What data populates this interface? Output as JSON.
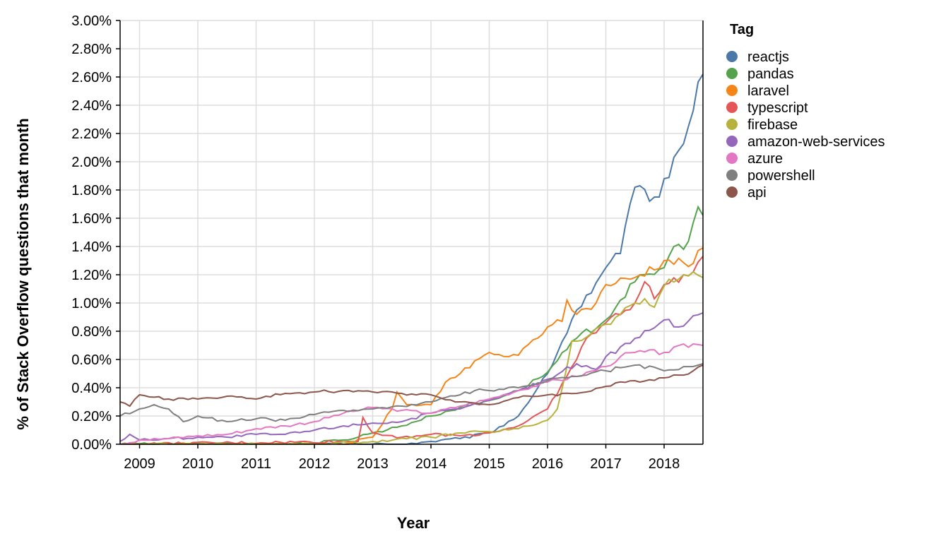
{
  "chart_data": {
    "type": "line",
    "xlabel": "Year",
    "ylabel": "% of Stack Overflow questions that month",
    "legend_title": "Tag",
    "legend_position": "right",
    "grid": true,
    "xlim": [
      "2008-08",
      "2018-08"
    ],
    "ylim": [
      0,
      0.03
    ],
    "x_ticks": [
      "2009",
      "2010",
      "2011",
      "2012",
      "2013",
      "2014",
      "2015",
      "2016",
      "2017",
      "2018"
    ],
    "y_ticks": [
      "0.00%",
      "0.20%",
      "0.40%",
      "0.60%",
      "0.80%",
      "1.00%",
      "1.20%",
      "1.40%",
      "1.60%",
      "1.80%",
      "2.00%",
      "2.20%",
      "2.40%",
      "2.60%",
      "2.80%",
      "3.00%"
    ],
    "series": [
      {
        "name": "reactjs",
        "color": "#4c78a8",
        "points": [
          [
            "2008-08",
            0
          ],
          [
            "2013-06",
            0
          ],
          [
            "2014-00",
            0.0002
          ],
          [
            "2014-06",
            0.0004
          ],
          [
            "2015-00",
            0.0008
          ],
          [
            "2015-06",
            0.002
          ],
          [
            "2016-00",
            0.005
          ],
          [
            "2016-06",
            0.0095
          ],
          [
            "2016-09",
            0.0107
          ],
          [
            "2017-00",
            0.0125
          ],
          [
            "2017-03",
            0.0135
          ],
          [
            "2017-06",
            0.0182
          ],
          [
            "2017-07",
            0.0183
          ],
          [
            "2017-09",
            0.0172
          ],
          [
            "2017-11",
            0.0175
          ],
          [
            "2018-00",
            0.0188
          ],
          [
            "2018-03",
            0.0208
          ],
          [
            "2018-05",
            0.0225
          ],
          [
            "2018-08",
            0.0262
          ]
        ]
      },
      {
        "name": "pandas",
        "color": "#54a24b",
        "points": [
          [
            "2008-08",
            0
          ],
          [
            "2011-06",
            0
          ],
          [
            "2012-00",
            0.0001
          ],
          [
            "2012-06",
            0.0003
          ],
          [
            "2013-00",
            0.0008
          ],
          [
            "2013-06",
            0.0013
          ],
          [
            "2014-00",
            0.002
          ],
          [
            "2014-06",
            0.0026
          ],
          [
            "2015-00",
            0.0031
          ],
          [
            "2015-06",
            0.0038
          ],
          [
            "2016-00",
            0.0051
          ],
          [
            "2016-06",
            0.0075
          ],
          [
            "2017-00",
            0.0088
          ],
          [
            "2017-03",
            0.0102
          ],
          [
            "2017-06",
            0.0115
          ],
          [
            "2018-00",
            0.0125
          ],
          [
            "2018-02",
            0.014
          ],
          [
            "2018-04",
            0.0138
          ],
          [
            "2018-07",
            0.0168
          ],
          [
            "2018-08",
            0.0162
          ]
        ]
      },
      {
        "name": "laravel",
        "color": "#f58518",
        "points": [
          [
            "2008-08",
            0
          ],
          [
            "2012-06",
            0
          ],
          [
            "2013-00",
            0.0005
          ],
          [
            "2013-04",
            0.0025
          ],
          [
            "2013-05",
            0.0037
          ],
          [
            "2013-07",
            0.0028
          ],
          [
            "2014-00",
            0.0028
          ],
          [
            "2014-03",
            0.0044
          ],
          [
            "2014-06",
            0.005
          ],
          [
            "2015-00",
            0.0065
          ],
          [
            "2015-04",
            0.0062
          ],
          [
            "2015-06",
            0.0063
          ],
          [
            "2016-00",
            0.0083
          ],
          [
            "2016-03",
            0.0087
          ],
          [
            "2016-04",
            0.0102
          ],
          [
            "2016-06",
            0.0092
          ],
          [
            "2016-10",
            0.01
          ],
          [
            "2017-00",
            0.0113
          ],
          [
            "2017-06",
            0.0118
          ],
          [
            "2018-00",
            0.013
          ],
          [
            "2018-06",
            0.0128
          ],
          [
            "2018-08",
            0.0139
          ]
        ]
      },
      {
        "name": "typescript",
        "color": "#e45756",
        "points": [
          [
            "2008-08",
            0
          ],
          [
            "2012-09",
            0.0002
          ],
          [
            "2012-10",
            0.0019
          ],
          [
            "2012-12",
            0.0008
          ],
          [
            "2013-06",
            0.0005
          ],
          [
            "2014-00",
            0.0007
          ],
          [
            "2014-06",
            0.0006
          ],
          [
            "2015-00",
            0.0008
          ],
          [
            "2015-06",
            0.0013
          ],
          [
            "2016-00",
            0.0025
          ],
          [
            "2016-06",
            0.006
          ],
          [
            "2016-08",
            0.0075
          ],
          [
            "2017-00",
            0.0086
          ],
          [
            "2017-06",
            0.01
          ],
          [
            "2017-08",
            0.0115
          ],
          [
            "2017-10",
            0.0103
          ],
          [
            "2018-00",
            0.0113
          ],
          [
            "2018-06",
            0.0122
          ],
          [
            "2018-08",
            0.0133
          ]
        ]
      },
      {
        "name": "firebase",
        "color": "#b7b23b",
        "points": [
          [
            "2008-08",
            0
          ],
          [
            "2012-00",
            0
          ],
          [
            "2013-00",
            0.0002
          ],
          [
            "2014-00",
            0.0005
          ],
          [
            "2014-06",
            0.0008
          ],
          [
            "2015-00",
            0.0009
          ],
          [
            "2015-06",
            0.0011
          ],
          [
            "2016-00",
            0.0017
          ],
          [
            "2016-02",
            0.0025
          ],
          [
            "2016-04",
            0.0055
          ],
          [
            "2016-05",
            0.0073
          ],
          [
            "2016-06",
            0.0073
          ],
          [
            "2017-00",
            0.0085
          ],
          [
            "2017-03",
            0.0092
          ],
          [
            "2017-06",
            0.01
          ],
          [
            "2017-08",
            0.0103
          ],
          [
            "2017-10",
            0.0097
          ],
          [
            "2018-00",
            0.0112
          ],
          [
            "2018-04",
            0.012
          ],
          [
            "2018-06",
            0.0122
          ],
          [
            "2018-08",
            0.0118
          ]
        ]
      },
      {
        "name": "amazon-web-services",
        "color": "#9467bd",
        "points": [
          [
            "2008-08",
            0.0002
          ],
          [
            "2008-10",
            0.0007
          ],
          [
            "2009-00",
            0.0003
          ],
          [
            "2009-06",
            0.0004
          ],
          [
            "2010-00",
            0.0005
          ],
          [
            "2010-06",
            0.0005
          ],
          [
            "2011-00",
            0.0007
          ],
          [
            "2011-06",
            0.0007
          ],
          [
            "2012-00",
            0.001
          ],
          [
            "2012-06",
            0.0013
          ],
          [
            "2013-00",
            0.0015
          ],
          [
            "2013-06",
            0.0016
          ],
          [
            "2014-00",
            0.0022
          ],
          [
            "2014-06",
            0.0025
          ],
          [
            "2015-00",
            0.0031
          ],
          [
            "2015-06",
            0.0038
          ],
          [
            "2016-00",
            0.0046
          ],
          [
            "2016-06",
            0.0057
          ],
          [
            "2016-10",
            0.0053
          ],
          [
            "2017-00",
            0.0062
          ],
          [
            "2017-06",
            0.0075
          ],
          [
            "2018-00",
            0.0088
          ],
          [
            "2018-03",
            0.0083
          ],
          [
            "2018-06",
            0.0091
          ],
          [
            "2018-08",
            0.0093
          ]
        ]
      },
      {
        "name": "azure",
        "color": "#e377c2",
        "points": [
          [
            "2008-08",
            0
          ],
          [
            "2009-00",
            0.0003
          ],
          [
            "2009-06",
            0.0004
          ],
          [
            "2010-00",
            0.0006
          ],
          [
            "2010-06",
            0.0007
          ],
          [
            "2011-00",
            0.0011
          ],
          [
            "2011-06",
            0.0013
          ],
          [
            "2012-00",
            0.0016
          ],
          [
            "2012-06",
            0.0022
          ],
          [
            "2013-00",
            0.0026
          ],
          [
            "2013-06",
            0.0024
          ],
          [
            "2014-00",
            0.0022
          ],
          [
            "2014-06",
            0.0027
          ],
          [
            "2015-00",
            0.0032
          ],
          [
            "2015-06",
            0.0038
          ],
          [
            "2016-00",
            0.0044
          ],
          [
            "2016-06",
            0.0048
          ],
          [
            "2017-00",
            0.0055
          ],
          [
            "2017-03",
            0.0062
          ],
          [
            "2017-06",
            0.0065
          ],
          [
            "2018-00",
            0.0065
          ],
          [
            "2018-06",
            0.0071
          ],
          [
            "2018-08",
            0.007
          ]
        ]
      },
      {
        "name": "powershell",
        "color": "#7f7f7f",
        "points": [
          [
            "2008-08",
            0.002
          ],
          [
            "2009-00",
            0.0025
          ],
          [
            "2009-03",
            0.0028
          ],
          [
            "2009-06",
            0.0025
          ],
          [
            "2009-09",
            0.0016
          ],
          [
            "2010-00",
            0.002
          ],
          [
            "2010-06",
            0.0016
          ],
          [
            "2011-00",
            0.0018
          ],
          [
            "2011-06",
            0.0017
          ],
          [
            "2012-00",
            0.0021
          ],
          [
            "2012-06",
            0.0024
          ],
          [
            "2013-00",
            0.0025
          ],
          [
            "2013-06",
            0.0027
          ],
          [
            "2014-00",
            0.003
          ],
          [
            "2014-06",
            0.0035
          ],
          [
            "2014-09",
            0.0038
          ],
          [
            "2015-00",
            0.0038
          ],
          [
            "2015-06",
            0.004
          ],
          [
            "2016-00",
            0.0045
          ],
          [
            "2016-06",
            0.0048
          ],
          [
            "2017-00",
            0.0052
          ],
          [
            "2017-06",
            0.0056
          ],
          [
            "2018-00",
            0.0052
          ],
          [
            "2018-06",
            0.0055
          ],
          [
            "2018-08",
            0.0057
          ]
        ]
      },
      {
        "name": "api",
        "color": "#8c564b",
        "points": [
          [
            "2008-08",
            0.003
          ],
          [
            "2008-10",
            0.0027
          ],
          [
            "2009-00",
            0.0035
          ],
          [
            "2009-06",
            0.0032
          ],
          [
            "2010-00",
            0.0032
          ],
          [
            "2010-06",
            0.0034
          ],
          [
            "2011-00",
            0.0032
          ],
          [
            "2011-06",
            0.0036
          ],
          [
            "2012-00",
            0.0037
          ],
          [
            "2012-06",
            0.0038
          ],
          [
            "2013-00",
            0.0037
          ],
          [
            "2013-06",
            0.0036
          ],
          [
            "2014-00",
            0.0035
          ],
          [
            "2014-06",
            0.003
          ],
          [
            "2015-00",
            0.0028
          ],
          [
            "2015-06",
            0.0033
          ],
          [
            "2016-00",
            0.0035
          ],
          [
            "2016-06",
            0.0036
          ],
          [
            "2017-00",
            0.0041
          ],
          [
            "2017-06",
            0.0045
          ],
          [
            "2018-00",
            0.0047
          ],
          [
            "2018-06",
            0.0052
          ],
          [
            "2018-08",
            0.0056
          ]
        ]
      }
    ]
  }
}
